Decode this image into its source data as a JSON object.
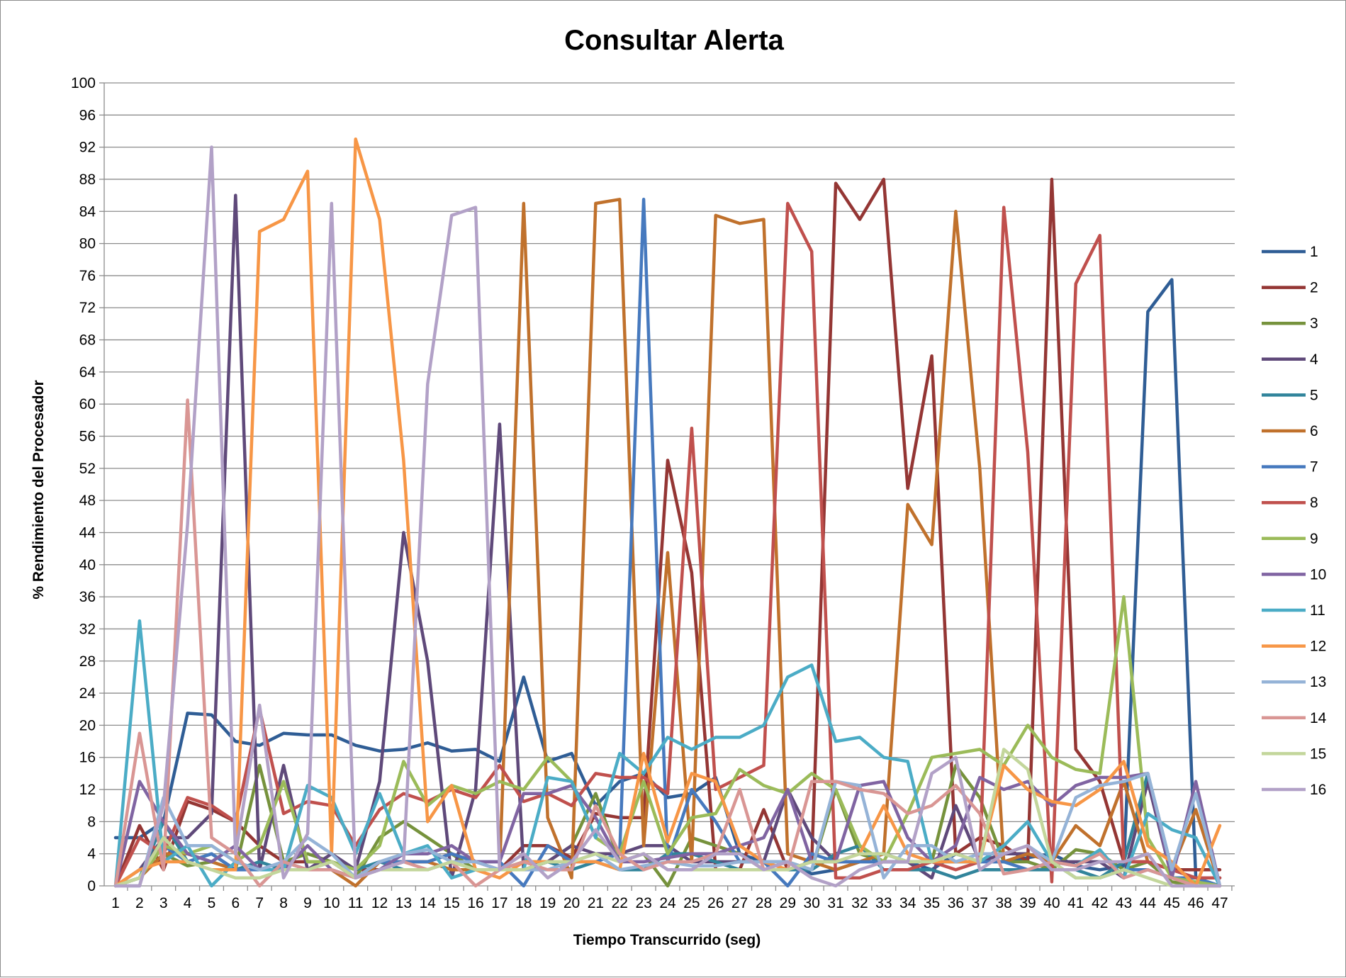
{
  "chart_data": {
    "type": "line",
    "title": "Consultar Alerta",
    "xlabel": "Tiempo Transcurrido (seg)",
    "ylabel": "% Rendimiento del Procesador",
    "ylim": [
      0,
      100
    ],
    "yticks": [
      0,
      4,
      8,
      12,
      16,
      20,
      24,
      28,
      32,
      36,
      40,
      44,
      48,
      52,
      56,
      60,
      64,
      68,
      72,
      76,
      80,
      84,
      88,
      92,
      96,
      100
    ],
    "x": [
      1,
      2,
      3,
      4,
      5,
      6,
      7,
      8,
      9,
      10,
      11,
      12,
      13,
      14,
      15,
      16,
      17,
      18,
      19,
      20,
      21,
      22,
      23,
      24,
      25,
      26,
      27,
      28,
      29,
      30,
      31,
      32,
      33,
      34,
      35,
      36,
      37,
      38,
      39,
      40,
      41,
      42,
      43,
      44,
      45,
      46,
      47
    ],
    "grid": "horizontal",
    "legend_position": "right",
    "series": [
      {
        "name": "1",
        "color": "#2f5d95",
        "values": [
          6,
          6,
          8,
          21.5,
          21.3,
          18,
          17.5,
          19,
          18.8,
          18.8,
          17.5,
          16.8,
          17,
          17.8,
          16.8,
          17,
          15.5,
          26,
          15.5,
          16.5,
          10,
          13,
          14,
          11,
          11.5,
          13.5,
          4,
          3,
          3,
          1.5,
          2,
          3,
          4,
          3,
          2,
          4,
          3,
          3,
          3.5,
          4,
          2.5,
          2,
          2.5,
          71.5,
          75.5,
          1,
          1
        ]
      },
      {
        "name": "2",
        "color": "#943634",
        "values": [
          0,
          7.5,
          2,
          10.5,
          9.5,
          8,
          5,
          3,
          3,
          3,
          2,
          2,
          3,
          3,
          4,
          3,
          2,
          5,
          5,
          3.5,
          9,
          8.5,
          8.5,
          53,
          39,
          2,
          2,
          9.5,
          2,
          3,
          87.5,
          83,
          88,
          49.5,
          66,
          4,
          6,
          5,
          3,
          88,
          17,
          13,
          3,
          3,
          2,
          2,
          2
        ]
      },
      {
        "name": "3",
        "color": "#76923c",
        "values": [
          0,
          1,
          4,
          2.5,
          3,
          2,
          15,
          3,
          4,
          3,
          1,
          6,
          8,
          6,
          4,
          2,
          2,
          3,
          3,
          5,
          11.5,
          3,
          4,
          0,
          6,
          5,
          4,
          2,
          3,
          2,
          12,
          4,
          3,
          3,
          3,
          15,
          11,
          3,
          3,
          2,
          4.5,
          4,
          2,
          3,
          0.5,
          0,
          0
        ]
      },
      {
        "name": "4",
        "color": "#5f497a",
        "values": [
          0,
          2,
          6,
          6,
          9,
          86,
          2,
          15,
          2,
          4,
          2,
          13,
          44,
          28,
          1,
          12,
          57.5,
          2,
          3,
          5,
          4,
          4,
          5,
          5,
          3,
          3,
          3,
          3,
          12,
          6,
          3,
          3,
          3,
          3,
          1,
          10,
          3,
          4,
          4,
          3,
          3,
          3,
          1,
          13,
          1,
          1,
          1
        ]
      },
      {
        "name": "5",
        "color": "#31849b",
        "values": [
          0,
          1,
          8,
          3,
          4,
          2,
          3,
          2,
          2,
          3,
          2,
          3,
          2,
          2,
          3,
          2,
          2,
          2,
          3,
          2,
          3,
          2,
          2,
          4,
          4,
          3,
          2,
          2,
          2,
          2,
          4,
          5,
          2,
          2,
          2,
          1,
          2,
          2,
          2,
          2,
          2,
          1,
          3,
          14,
          2,
          1,
          0
        ]
      },
      {
        "name": "6",
        "color": "#c0712c",
        "values": [
          0,
          1,
          4,
          4,
          3,
          2,
          2,
          2,
          2,
          2,
          0,
          3,
          3,
          3,
          2,
          2,
          2,
          85,
          8.5,
          1,
          85,
          85.5,
          5,
          41.5,
          3,
          83.5,
          82.5,
          83,
          4,
          3,
          2,
          3,
          4,
          47.5,
          42.5,
          84,
          52,
          3,
          4,
          3,
          7.5,
          5,
          13,
          3,
          2,
          9.5,
          0
        ]
      },
      {
        "name": "7",
        "color": "#4679be",
        "values": [
          0,
          1,
          5,
          3,
          4,
          2,
          2,
          3,
          2,
          2,
          1,
          3,
          3,
          3,
          4,
          3,
          3,
          0,
          5,
          3,
          3,
          4,
          85.5,
          3,
          12,
          8,
          3,
          3,
          0,
          4,
          3,
          3,
          3,
          3,
          3,
          3,
          3,
          3,
          2,
          3,
          1,
          1,
          2,
          2,
          1,
          1,
          0
        ]
      },
      {
        "name": "8",
        "color": "#c0504d",
        "values": [
          0,
          6,
          4,
          11,
          10,
          8,
          22,
          9,
          10.5,
          10,
          5,
          9.5,
          11.5,
          10.5,
          12,
          11,
          15,
          10.5,
          11.5,
          10,
          14,
          13.5,
          13.5,
          11.5,
          57,
          12,
          13.5,
          15,
          85,
          79,
          1,
          1,
          2,
          2,
          3,
          2,
          3,
          84.5,
          54,
          0.5,
          75,
          81,
          3,
          3,
          2,
          1,
          1
        ]
      },
      {
        "name": "9",
        "color": "#9bbb59",
        "values": [
          0,
          1,
          5,
          4,
          5,
          3,
          5,
          13,
          3,
          3,
          2,
          5,
          15.5,
          10,
          12.5,
          11.5,
          13,
          12,
          16,
          13,
          6,
          4,
          13,
          4,
          8.5,
          9,
          14.5,
          12.5,
          11.5,
          14,
          12,
          5,
          3,
          9,
          16,
          16.5,
          17,
          15,
          20,
          16,
          14.5,
          14,
          36,
          6,
          1,
          0.5,
          0
        ]
      },
      {
        "name": "10",
        "color": "#8064a2",
        "values": [
          0,
          13,
          8,
          4,
          3,
          5,
          2,
          2,
          5,
          2,
          1,
          2,
          4,
          4,
          5,
          3,
          3,
          11.5,
          11.5,
          12.5,
          8.5,
          3,
          3,
          3.5,
          4,
          4,
          5,
          6,
          12,
          3,
          3,
          12.5,
          13,
          6,
          3,
          5,
          13.5,
          12,
          13,
          10,
          12.5,
          13.5,
          13.5,
          14,
          1,
          13,
          0
        ]
      },
      {
        "name": "11",
        "color": "#4bacc6",
        "values": [
          0,
          33,
          3,
          5,
          0,
          3,
          2,
          2,
          12.5,
          11,
          4,
          11.5,
          4,
          5,
          1,
          2,
          2,
          2,
          13.5,
          13,
          6,
          16.5,
          14,
          18.5,
          17,
          18.5,
          18.5,
          20,
          26,
          27.5,
          18,
          18.5,
          16,
          15.5,
          3,
          3,
          3,
          5,
          8,
          3,
          2.5,
          4.5,
          1,
          9,
          7,
          6,
          0
        ]
      },
      {
        "name": "12",
        "color": "#f79646",
        "values": [
          0,
          2,
          3,
          3,
          2,
          2,
          81.5,
          83,
          89,
          4,
          93,
          83,
          53,
          8,
          12.5,
          2,
          1,
          3,
          3,
          3,
          3,
          2,
          16.5,
          5.5,
          14,
          13,
          5,
          3,
          2,
          3,
          3,
          4,
          10,
          4,
          3,
          3,
          3,
          15,
          12,
          10.5,
          10,
          12,
          15.5,
          5,
          3,
          0,
          7.5
        ]
      },
      {
        "name": "13",
        "color": "#95b3d7",
        "values": [
          0,
          0,
          11,
          5,
          5,
          3,
          2,
          3,
          6,
          4,
          1,
          3,
          4,
          4.5,
          3,
          3,
          2,
          2,
          2,
          3,
          4,
          2,
          2.5,
          3,
          2.5,
          2.5,
          3,
          3,
          3,
          2,
          13,
          12.5,
          1,
          5,
          5,
          3,
          4,
          4,
          5,
          3,
          11,
          12.5,
          13,
          14,
          2,
          11.5,
          0
        ]
      },
      {
        "name": "14",
        "color": "#d99694",
        "values": [
          0,
          19,
          2,
          60.5,
          6,
          4,
          0,
          3,
          2,
          2,
          1,
          2,
          3,
          2,
          3,
          0,
          2,
          3,
          2,
          2,
          10,
          4,
          2,
          3,
          3,
          4,
          12,
          2,
          2,
          13,
          13,
          12,
          11.5,
          9,
          10,
          12.5,
          9,
          1.5,
          2,
          3,
          2.5,
          4,
          1,
          2,
          1,
          0,
          0
        ]
      },
      {
        "name": "15",
        "color": "#c3d69b",
        "values": [
          0,
          1,
          6,
          3,
          2,
          1,
          1,
          2,
          2,
          3,
          1,
          2,
          2,
          2,
          3,
          2,
          2,
          2,
          3,
          3,
          4,
          3,
          4,
          2,
          2,
          2,
          2,
          2,
          2,
          3,
          3,
          4,
          4,
          3,
          3,
          4,
          3,
          17,
          14.5,
          3,
          1,
          1,
          2,
          1,
          0,
          0,
          0
        ]
      },
      {
        "name": "16",
        "color": "#b2a1c7",
        "values": [
          0,
          0,
          10,
          45,
          92,
          4,
          22.5,
          1,
          6.5,
          85,
          1,
          2,
          3,
          62.5,
          83.5,
          84.5,
          2,
          4,
          1,
          3,
          7,
          3,
          4,
          2,
          2,
          4,
          4,
          2,
          3,
          1,
          0,
          2,
          3,
          3,
          14,
          16,
          2,
          4,
          5,
          2,
          2,
          3,
          3,
          4,
          0,
          0,
          0
        ]
      }
    ]
  }
}
